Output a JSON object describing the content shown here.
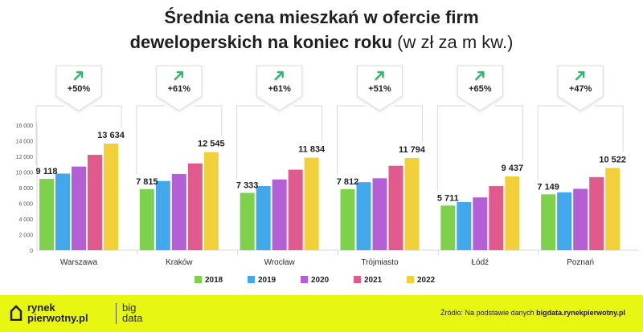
{
  "title_line1": "Średnia cena mieszkań w ofercie firm",
  "title_line2": "deweloperskich na koniec roku",
  "title_unit": "(w zł za m kw.)",
  "chart_data": {
    "type": "bar",
    "title": "Średnia cena mieszkań w ofercie firm deweloperskich na koniec roku (w zł za m kw.)",
    "categories": [
      "Warszawa",
      "Kraków",
      "Wrocław",
      "Trójmiasto",
      "Łódź",
      "Poznań"
    ],
    "series": [
      {
        "name": "2018",
        "color": "#7ed14b",
        "values": [
          9118,
          7815,
          7333,
          7812,
          5711,
          7149
        ]
      },
      {
        "name": "2019",
        "color": "#42a8ec",
        "values": [
          9800,
          8850,
          8200,
          8700,
          6150,
          7400
        ]
      },
      {
        "name": "2020",
        "color": "#b45fd6",
        "values": [
          10700,
          9750,
          9050,
          9200,
          6750,
          7850
        ]
      },
      {
        "name": "2021",
        "color": "#e05a8d",
        "values": [
          12200,
          11100,
          10300,
          10800,
          8200,
          9350
        ]
      },
      {
        "name": "2022",
        "color": "#f2d03a",
        "values": [
          13634,
          12545,
          11834,
          11794,
          9437,
          10522
        ]
      }
    ],
    "value_labels": {
      "first": [
        "9 118",
        "7 815",
        "7 333",
        "7 812",
        "5 711",
        "7 149"
      ],
      "last": [
        "13 634",
        "12 545",
        "11 834",
        "11 794",
        "9 437",
        "10 522"
      ]
    },
    "growth": [
      "+50%",
      "+61%",
      "+61%",
      "+51%",
      "+65%",
      "+47%"
    ],
    "growth_color": "#2fb36a",
    "y_ticks": [
      "0",
      "2 000",
      "4 000",
      "6 000",
      "8 000",
      "10 000",
      "12 000",
      "14 000",
      "16 000"
    ],
    "ylim": [
      0,
      16000
    ],
    "legend": [
      "2018",
      "2019",
      "2020",
      "2021",
      "2022"
    ],
    "legend_position": "bottom",
    "grid": false
  },
  "footer": {
    "logo_line1": "rynek",
    "logo_line2": "pierwotny.pl",
    "brand_line1": "big",
    "brand_line2": "data",
    "source_prefix": "Źródło: Na podstawie danych",
    "source_site": "bigdata.rynekpierwotny.pl",
    "background": "#e8f711"
  }
}
